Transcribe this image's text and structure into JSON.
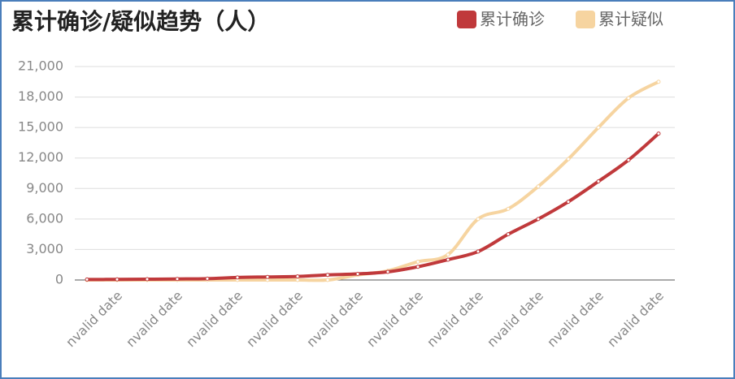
{
  "chart_data": {
    "type": "line",
    "title": "累计确诊/疑似趋势（人）",
    "categories": [
      null,
      "nvalid date",
      null,
      "nvalid date",
      null,
      "nvalid date",
      null,
      "nvalid date",
      null,
      "nvalid date",
      null,
      "nvalid date",
      null,
      "nvalid date",
      null,
      "nvalid date",
      null,
      "nvalid date",
      null,
      "nvalid date"
    ],
    "series": [
      {
        "name": "累计确诊",
        "color": "#c0393b",
        "values": [
          45,
          62,
          80,
          100,
          130,
          250,
          300,
          350,
          500,
          600,
          800,
          1300,
          2000,
          2800,
          4500,
          6000,
          7700,
          9700,
          11800,
          14400
        ]
      },
      {
        "name": "累计疑似",
        "color": "#f6d4a0",
        "values": [
          0,
          0,
          0,
          0,
          0,
          0,
          0,
          0,
          0,
          500,
          900,
          1800,
          2500,
          6000,
          7000,
          9200,
          11900,
          15000,
          17900,
          19500
        ]
      }
    ],
    "ylim": [
      0,
      21000
    ],
    "yticks": [
      0,
      {
        "value": 3000,
        "label": "3,000"
      },
      {
        "value": 6000,
        "label": "6,000"
      },
      {
        "value": 9000,
        "label": "9,000"
      },
      {
        "value": 12000,
        "label": "12,000"
      },
      {
        "value": 15000,
        "label": "15,000"
      },
      {
        "value": 18000,
        "label": "18,000"
      },
      {
        "value": 21000,
        "label": "21,000"
      }
    ],
    "grid": true
  }
}
